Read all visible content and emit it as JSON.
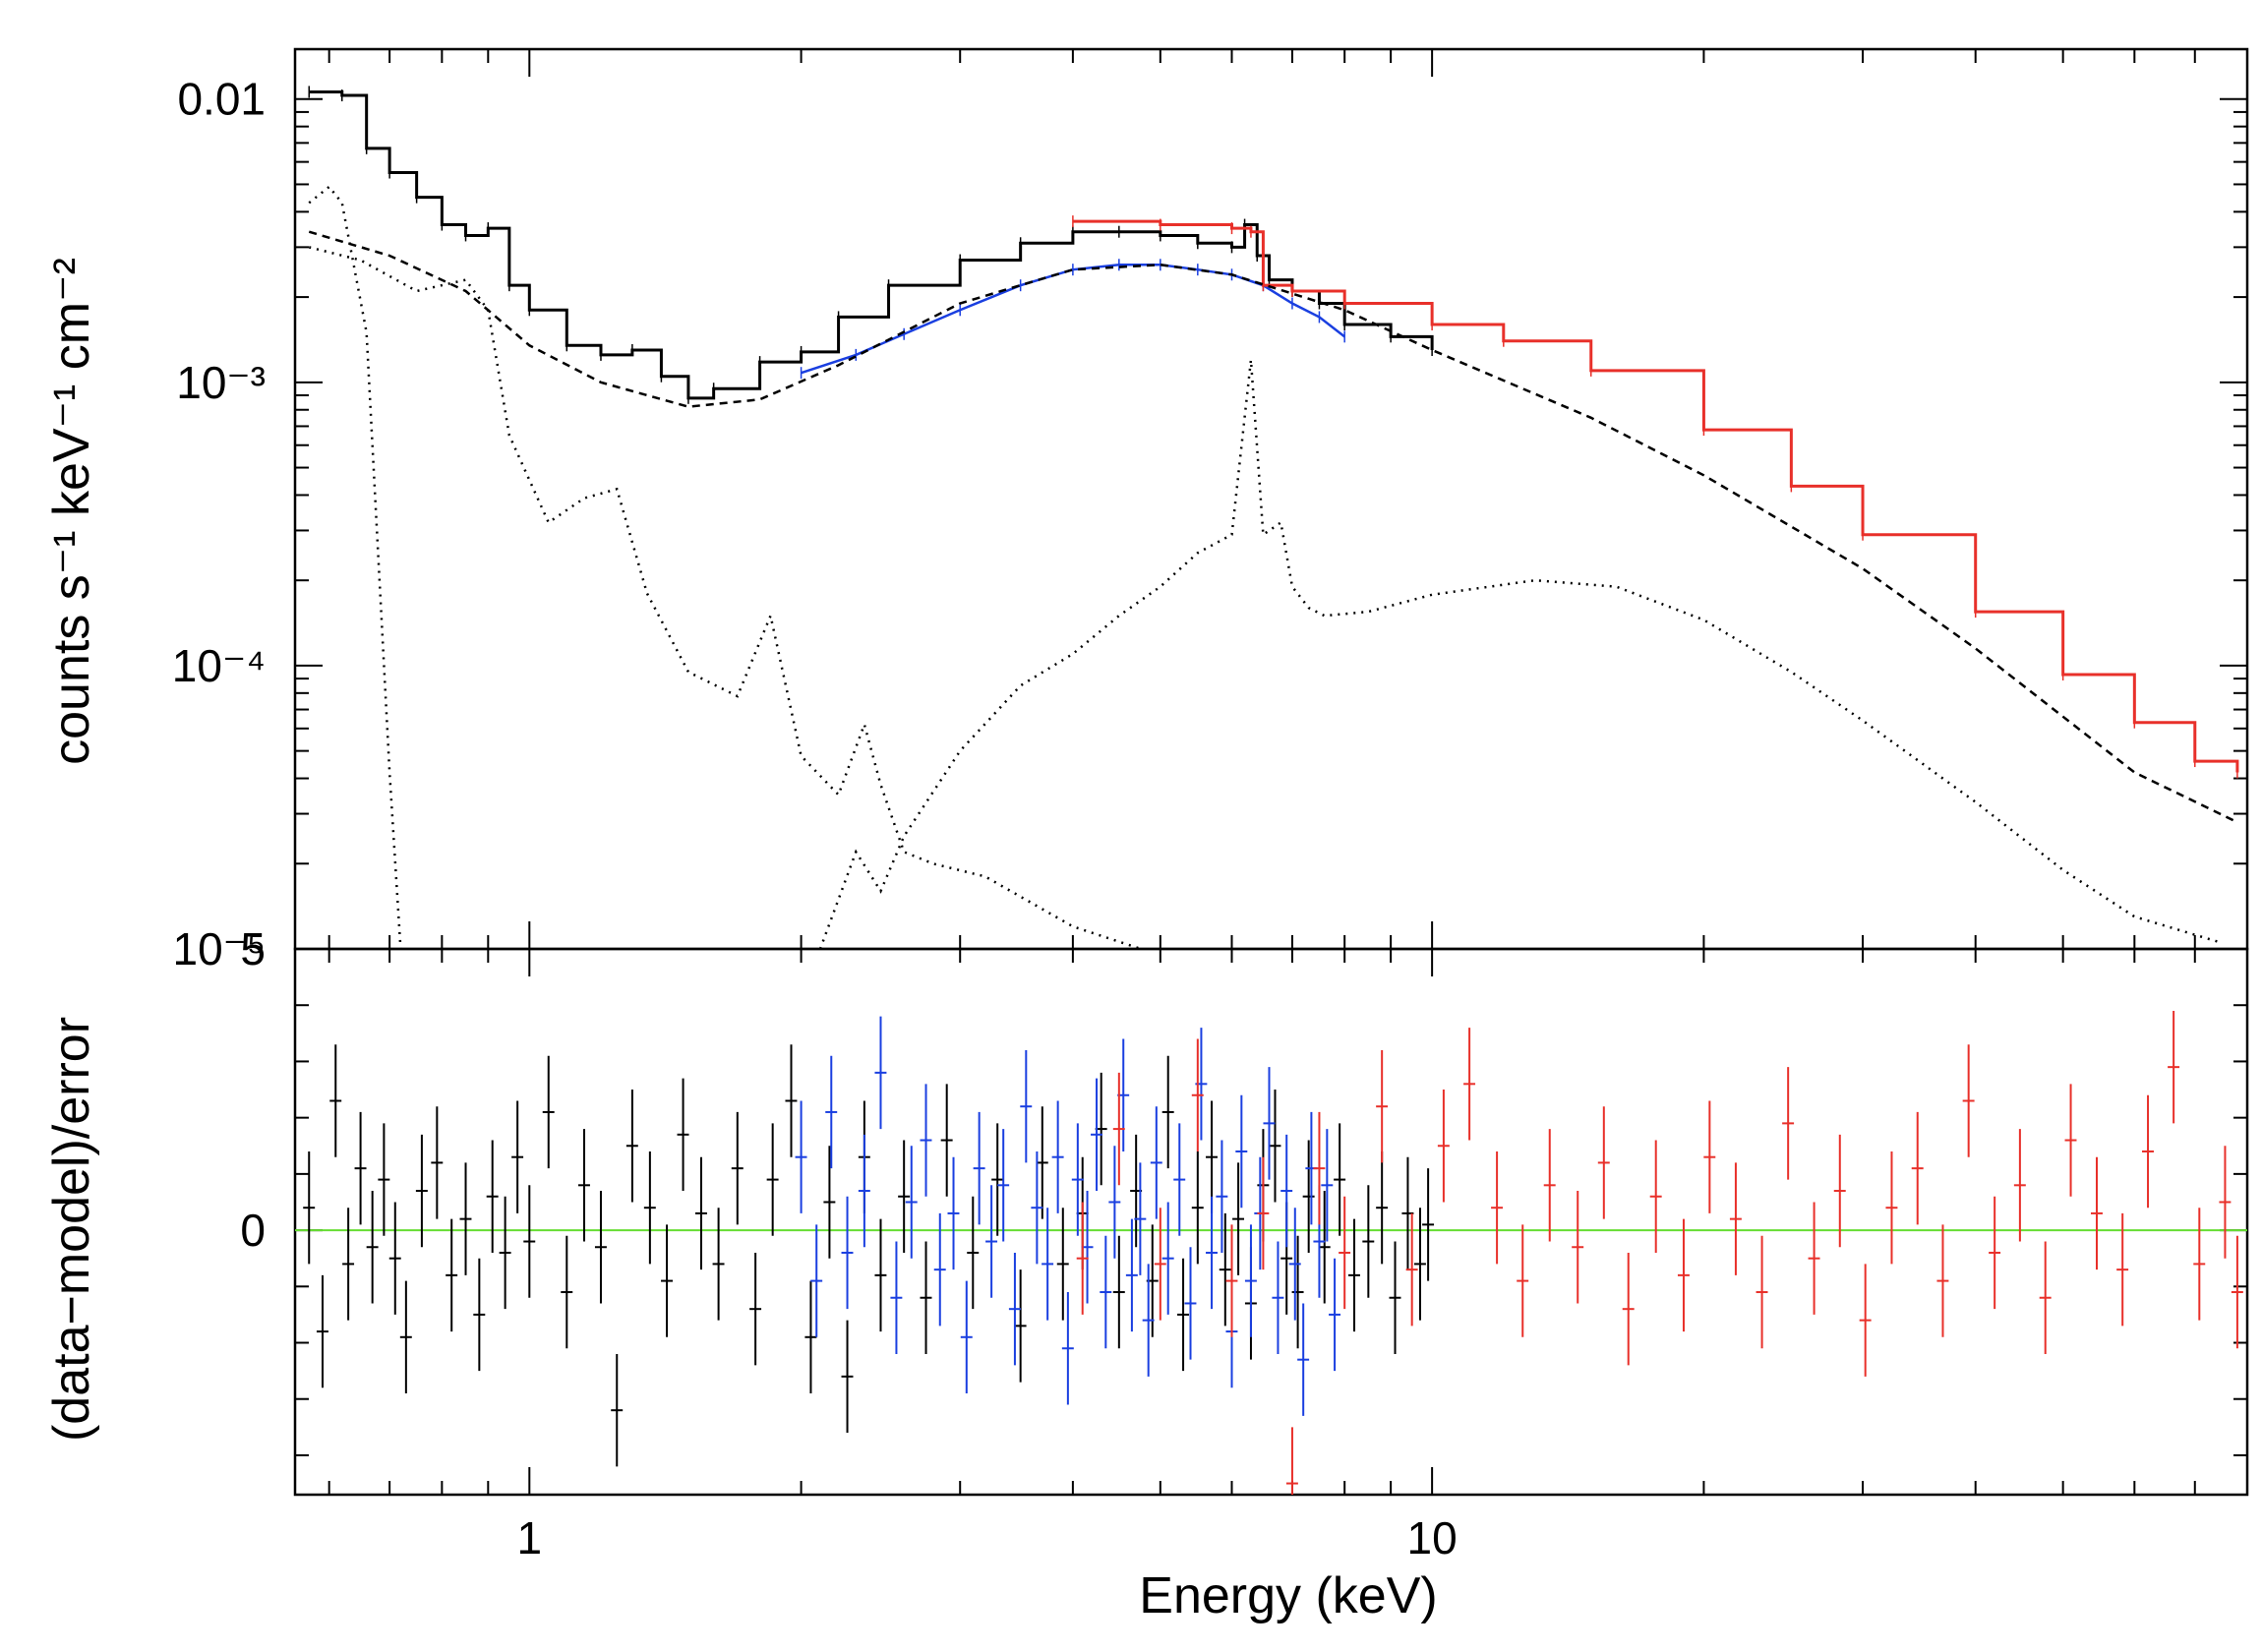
{
  "chart_data": [
    {
      "type": "line",
      "panel": "spectrum",
      "xscale": "log",
      "yscale": "log",
      "xlim": [
        0.55,
        80
      ],
      "ylim": [
        1e-05,
        0.015
      ],
      "ylabel": "counts s⁻¹ keV⁻¹ cm⁻²",
      "y_ticks": [
        {
          "value": 0.01,
          "label": "0.01"
        },
        {
          "value": 0.001,
          "label": "10⁻³"
        },
        {
          "value": 0.0001,
          "label": "10⁻⁴"
        },
        {
          "value": 1e-05,
          "label": "10⁻⁵"
        }
      ],
      "series": [
        {
          "name": "black-data-model",
          "color": "#000000",
          "style": "step",
          "x": [
            0.57,
            0.62,
            0.66,
            0.7,
            0.75,
            0.8,
            0.85,
            0.9,
            0.95,
            1.0,
            1.1,
            1.2,
            1.3,
            1.4,
            1.5,
            1.6,
            1.8,
            2.0,
            2.2,
            2.5,
            3.0,
            3.5,
            4.0,
            4.5,
            5.0,
            5.5,
            6.0,
            6.2,
            6.4,
            6.6,
            7.0,
            7.5,
            8.0,
            9.0,
            10.0
          ],
          "y": [
            0.0106,
            0.0103,
            0.0067,
            0.0055,
            0.0045,
            0.0036,
            0.0033,
            0.0035,
            0.0022,
            0.0018,
            0.00135,
            0.00125,
            0.0013,
            0.00105,
            0.00088,
            0.00095,
            0.00118,
            0.00128,
            0.0017,
            0.0022,
            0.0027,
            0.0031,
            0.0034,
            0.0034,
            0.0033,
            0.0031,
            0.003,
            0.0036,
            0.0028,
            0.0023,
            0.0021,
            0.0019,
            0.0016,
            0.00145,
            0.0013
          ]
        },
        {
          "name": "blue-data-model",
          "color": "#1a3fe0",
          "style": "line",
          "x": [
            2.0,
            2.3,
            2.6,
            3.0,
            3.5,
            4.0,
            4.5,
            5.0,
            5.5,
            6.0,
            6.5,
            7.0,
            7.5,
            8.0
          ],
          "y": [
            0.00108,
            0.00125,
            0.00148,
            0.0018,
            0.0022,
            0.0025,
            0.0026,
            0.0026,
            0.0025,
            0.0024,
            0.0022,
            0.0019,
            0.0017,
            0.00145
          ]
        },
        {
          "name": "red-data-model",
          "color": "#e8302a",
          "style": "step",
          "x": [
            4.0,
            5.0,
            6.0,
            6.3,
            6.5,
            7.0,
            8.0,
            10.0,
            12.0,
            15.0,
            20.0,
            25.0,
            30.0,
            40.0,
            50.0,
            60.0,
            70.0,
            78.0
          ],
          "y": [
            0.0037,
            0.0036,
            0.0035,
            0.0034,
            0.0022,
            0.0021,
            0.0019,
            0.0016,
            0.0014,
            0.0011,
            0.00068,
            0.00043,
            0.00029,
            0.000155,
            9.3e-05,
            6.3e-05,
            4.6e-05,
            4.2e-05
          ]
        },
        {
          "name": "model-component-powerlaw",
          "color": "#000000",
          "style": "dashed",
          "x": [
            0.57,
            0.7,
            0.85,
            1.0,
            1.2,
            1.5,
            1.8,
            2.2,
            3.0,
            4.0,
            5.0,
            6.0,
            8.0,
            10.0,
            15.0,
            20.0,
            30.0,
            40.0,
            60.0,
            78.0
          ],
          "y": [
            0.0034,
            0.0028,
            0.0021,
            0.00135,
            0.001,
            0.00082,
            0.00087,
            0.00115,
            0.0019,
            0.0025,
            0.0026,
            0.0024,
            0.0018,
            0.0013,
            0.00075,
            0.00047,
            0.00022,
            0.000115,
            4.2e-05,
            2.8e-05
          ]
        },
        {
          "name": "model-component-soft-thermal",
          "color": "#000000",
          "style": "dotted",
          "x": [
            0.57,
            0.6,
            0.62,
            0.66,
            0.7,
            0.72
          ],
          "y": [
            0.0043,
            0.0049,
            0.0043,
            0.0015,
            4.2e-05,
            1e-05
          ]
        },
        {
          "name": "model-component-warm-thermal",
          "color": "#000000",
          "style": "dotted",
          "x": [
            0.57,
            0.65,
            0.75,
            0.85,
            0.9,
            0.95,
            1.05,
            1.15,
            1.25,
            1.35,
            1.5,
            1.7,
            1.85,
            2.0,
            2.2,
            2.35,
            2.45,
            2.6,
            2.8,
            3.2,
            4.0,
            5.0
          ],
          "y": [
            0.003,
            0.0027,
            0.0021,
            0.0023,
            0.0018,
            0.00065,
            0.00032,
            0.00039,
            0.00042,
            0.00018,
            9.5e-05,
            7.8e-05,
            0.00015,
            4.8e-05,
            3.5e-05,
            6.2e-05,
            3.8e-05,
            2.2e-05,
            2e-05,
            1.8e-05,
            1.2e-05,
            9.5e-06
          ]
        },
        {
          "name": "model-component-reflection",
          "color": "#000000",
          "style": "dotted",
          "x": [
            2.1,
            2.3,
            2.45,
            2.6,
            3.0,
            3.5,
            4.0,
            4.5,
            5.0,
            5.5,
            6.0,
            6.3,
            6.5,
            6.8,
            7.0,
            7.3,
            7.6,
            8.5,
            10.0,
            13.0,
            16.0,
            20.0,
            25.0,
            30.0,
            40.0,
            50.0,
            60.0,
            75.0
          ],
          "y": [
            1e-05,
            2.2e-05,
            1.6e-05,
            2.5e-05,
            5e-05,
            8.5e-05,
            0.00011,
            0.00015,
            0.00019,
            0.00025,
            0.00029,
            0.0012,
            0.00029,
            0.00032,
            0.00019,
            0.00016,
            0.00015,
            0.000155,
            0.000178,
            0.0002,
            0.00019,
            0.000145,
            9.5e-05,
            6.4e-05,
            3.3e-05,
            1.9e-05,
            1.3e-05,
            1.05e-05
          ]
        }
      ]
    },
    {
      "type": "scatter",
      "panel": "residuals",
      "xscale": "log",
      "xlim": [
        0.55,
        80
      ],
      "ylim": [
        -4.7,
        5
      ],
      "ylabel": "(data−model)/error",
      "xlabel": "Energy (keV)",
      "x_ticks": [
        {
          "value": 1,
          "label": "1"
        },
        {
          "value": 10,
          "label": "10"
        }
      ],
      "y_ticks": [
        {
          "value": 5,
          "label": "5"
        },
        {
          "value": 0,
          "label": "0"
        }
      ],
      "zero_line_color": "#66dd33",
      "series": [
        {
          "name": "black-residuals",
          "color": "#000000",
          "x": [
            0.57,
            0.59,
            0.61,
            0.63,
            0.65,
            0.67,
            0.69,
            0.71,
            0.73,
            0.76,
            0.79,
            0.82,
            0.85,
            0.88,
            0.91,
            0.94,
            0.97,
            1.0,
            1.05,
            1.1,
            1.15,
            1.2,
            1.25,
            1.3,
            1.36,
            1.42,
            1.48,
            1.55,
            1.62,
            1.7,
            1.78,
            1.86,
            1.95,
            2.05,
            2.15,
            2.25,
            2.35,
            2.45,
            2.6,
            2.75,
            2.9,
            3.1,
            3.3,
            3.5,
            3.7,
            3.9,
            4.1,
            4.3,
            4.5,
            4.7,
            4.9,
            5.1,
            5.3,
            5.5,
            5.7,
            5.9,
            6.1,
            6.3,
            6.5,
            6.7,
            6.9,
            7.1,
            7.3,
            7.6,
            7.9,
            8.2,
            8.5,
            8.8,
            9.1,
            9.4,
            9.7,
            9.9
          ],
          "y": [
            0.4,
            -1.8,
            2.3,
            -0.6,
            1.1,
            -0.3,
            0.9,
            -0.5,
            -1.9,
            0.7,
            1.2,
            -0.8,
            0.2,
            -1.5,
            0.6,
            -0.4,
            1.3,
            -0.2,
            2.1,
            -1.1,
            0.8,
            -0.3,
            -3.2,
            1.5,
            0.4,
            -0.9,
            1.7,
            0.3,
            -0.6,
            1.1,
            -1.4,
            0.9,
            2.3,
            -1.9,
            0.5,
            -2.6,
            1.3,
            -0.8,
            0.6,
            -1.2,
            1.6,
            -0.4,
            0.9,
            -1.7,
            1.2,
            -0.6,
            0.3,
            1.8,
            -1.1,
            0.7,
            -0.9,
            2.1,
            -1.5,
            0.4,
            1.3,
            -0.7,
            0.2,
            -1.3,
            0.8,
            1.5,
            -0.5,
            -1.1,
            0.6,
            -0.3,
            0.9,
            -0.8,
            -0.2,
            0.4,
            -1.2,
            0.3,
            -0.6,
            0.1
          ]
        },
        {
          "name": "blue-residuals",
          "color": "#1a3fe0",
          "x": [
            2.0,
            2.08,
            2.16,
            2.25,
            2.35,
            2.45,
            2.55,
            2.65,
            2.75,
            2.85,
            2.95,
            3.05,
            3.15,
            3.25,
            3.35,
            3.45,
            3.55,
            3.65,
            3.75,
            3.85,
            3.95,
            4.05,
            4.15,
            4.25,
            4.35,
            4.45,
            4.55,
            4.65,
            4.75,
            4.85,
            4.95,
            5.1,
            5.25,
            5.4,
            5.55,
            5.7,
            5.85,
            6.0,
            6.15,
            6.3,
            6.45,
            6.6,
            6.75,
            6.9,
            7.05,
            7.2,
            7.35,
            7.5,
            7.65,
            7.8
          ],
          "y": [
            1.3,
            -0.9,
            2.1,
            -0.4,
            0.7,
            2.8,
            -1.2,
            0.5,
            1.6,
            -0.7,
            0.3,
            -1.9,
            1.1,
            -0.2,
            0.8,
            -1.4,
            2.2,
            0.4,
            -0.6,
            1.3,
            -2.1,
            0.9,
            -0.3,
            1.7,
            -1.1,
            0.5,
            2.4,
            -0.8,
            0.2,
            -1.6,
            1.2,
            -0.5,
            0.9,
            -1.3,
            2.6,
            -0.4,
            0.6,
            -1.8,
            1.4,
            -0.9,
            0.3,
            1.9,
            -1.2,
            0.7,
            -0.6,
            -2.3,
            1.1,
            -0.2,
            0.8,
            -1.5
          ]
        },
        {
          "name": "red-residuals",
          "color": "#e8302a",
          "x": [
            4.1,
            4.5,
            5.0,
            5.5,
            6.0,
            6.5,
            7.0,
            7.5,
            8.0,
            8.8,
            9.5,
            10.3,
            11.0,
            11.8,
            12.6,
            13.5,
            14.5,
            15.5,
            16.5,
            17.7,
            19.0,
            20.3,
            21.7,
            23.2,
            24.8,
            26.5,
            28.3,
            30.2,
            32.3,
            34.5,
            36.8,
            39.3,
            42.0,
            44.8,
            47.8,
            51.0,
            54.5,
            58.2,
            62.1,
            66.3,
            70.8,
            75.6,
            78.0
          ],
          "y": [
            -0.5,
            1.8,
            -0.6,
            2.4,
            -0.9,
            0.3,
            -4.5,
            1.1,
            -0.4,
            2.2,
            -0.7,
            1.5,
            2.6,
            0.4,
            -0.9,
            0.8,
            -0.3,
            1.2,
            -1.4,
            0.6,
            -0.8,
            1.3,
            0.2,
            -1.1,
            1.9,
            -0.5,
            0.7,
            -1.6,
            0.4,
            1.1,
            -0.9,
            2.3,
            -0.4,
            0.8,
            -1.2,
            1.6,
            0.3,
            -0.7,
            1.4,
            2.9,
            -0.6,
            0.5,
            -1.1
          ]
        }
      ]
    }
  ]
}
